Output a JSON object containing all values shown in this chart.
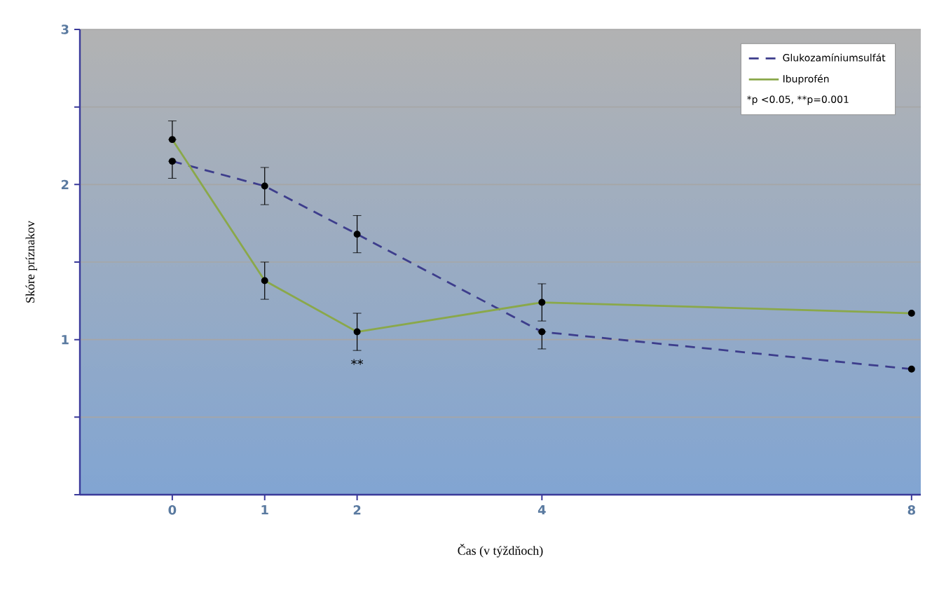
{
  "chart_data": {
    "type": "line",
    "xlabel": "Čas (v týždňoch)",
    "ylabel": "Skóre príznakov",
    "x": [
      0,
      1,
      2,
      4,
      8
    ],
    "series": [
      {
        "name": "Glukozamíniumsulfát",
        "color": "#3d3d8c",
        "line_style": "dashed",
        "values": [
          2.15,
          1.99,
          1.68,
          1.05,
          0.81
        ],
        "errors": [
          [
            2.04,
            2.15
          ],
          0.12,
          0.12,
          [
            0.94,
            1.05
          ],
          null
        ]
      },
      {
        "name": "Ibuprofén",
        "color": "#8aa84a",
        "line_style": "solid",
        "values": [
          2.29,
          1.38,
          1.05,
          1.24,
          1.17
        ],
        "errors": [
          [
            2.29,
            2.41
          ],
          0.12,
          0.12,
          0.12,
          null
        ]
      }
    ],
    "marker": "circle",
    "xlim": [
      -1,
      8.1
    ],
    "xticks": [
      0,
      1,
      2,
      4,
      8
    ],
    "ylim": [
      0,
      3
    ],
    "yticks": [
      {
        "value": 0,
        "label": null
      },
      {
        "value": 0.5,
        "label": null
      },
      1,
      {
        "value": 1.5,
        "label": null
      },
      2,
      {
        "value": 2.5,
        "label": null
      },
      3
    ],
    "grid": "y",
    "legend": "top right",
    "annotations": [
      "*p <0.05, **p=0.001",
      {
        "text": "**",
        "x": 2,
        "y": 1.05
      }
    ]
  }
}
